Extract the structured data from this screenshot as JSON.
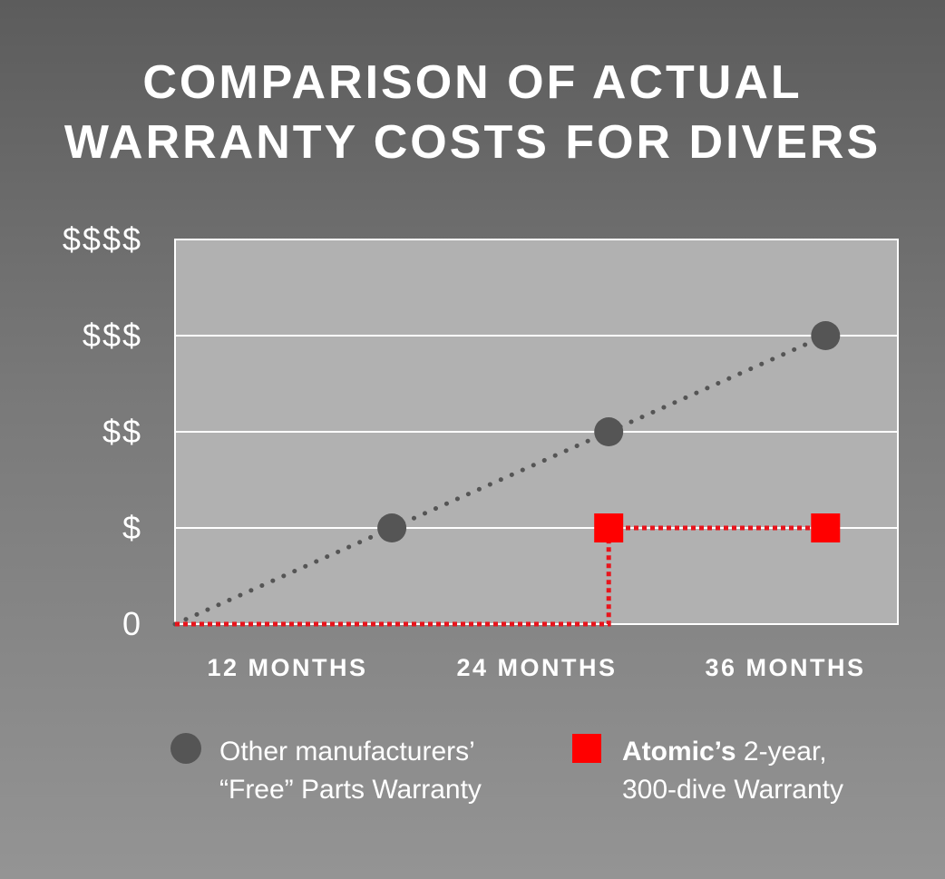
{
  "title": {
    "line1": "COMPARISON OF ACTUAL",
    "line2": "WARRANTY COSTS FOR DIVERS"
  },
  "chart_data": {
    "type": "line",
    "categories": [
      "12 MONTHS",
      "24 MONTHS",
      "36 MONTHS"
    ],
    "y_tick_labels": [
      "0",
      "$",
      "$$",
      "$$$",
      "$$$$"
    ],
    "ylim": [
      0,
      4
    ],
    "grid": true,
    "series": [
      {
        "name": "Other manufacturers’ “Free” Parts Warranty",
        "color": "#555555",
        "marker": "circle",
        "line_style": "dotted",
        "points": [
          {
            "x": 0,
            "y": 0
          },
          {
            "x": 12,
            "y": 1
          },
          {
            "x": 24,
            "y": 2
          },
          {
            "x": 36,
            "y": 3
          }
        ]
      },
      {
        "name": "Atomic’s 2-year, 300-dive Warranty",
        "color": "#e8141c",
        "marker": "square",
        "line_style": "dotted-step",
        "points": [
          {
            "x": 0,
            "y": 0
          },
          {
            "x": 24,
            "y": 0
          },
          {
            "x": 24,
            "y": 1
          },
          {
            "x": 36,
            "y": 1
          }
        ]
      }
    ],
    "legend_position": "bottom"
  },
  "legend": {
    "other": {
      "line1": "Other manufacturers’",
      "line2": "“Free” Parts Warranty"
    },
    "atomic": {
      "brand": "Atomic’s",
      "line1_rest": " 2-year,",
      "line2": "300-dive Warranty"
    }
  },
  "colors": {
    "plot_background": "#b1b1b1",
    "grid": "#ffffff",
    "other_series": "#555555",
    "atomic_line": "#e8141c",
    "atomic_marker": "#ff0000"
  }
}
